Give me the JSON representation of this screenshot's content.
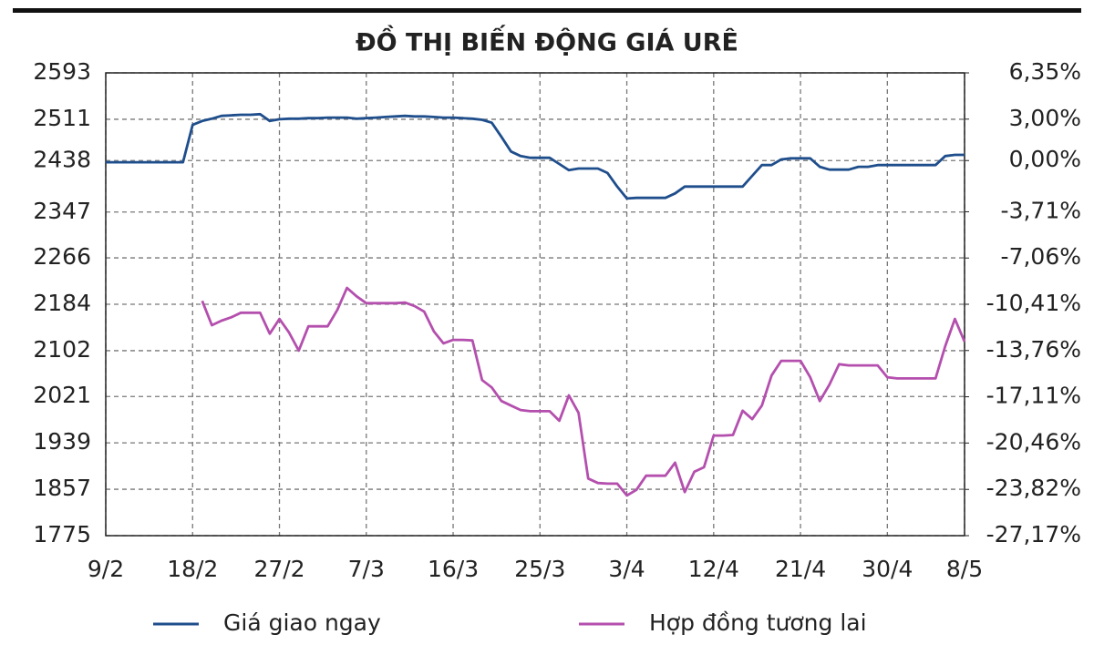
{
  "chart_data": {
    "type": "line",
    "title": "ĐỒ THỊ BIẾN ĐỘNG GIÁ URÊ",
    "categories": [
      "9/2",
      null,
      null,
      null,
      null,
      null,
      null,
      null,
      null,
      "18/2",
      null,
      null,
      null,
      null,
      null,
      null,
      null,
      null,
      "27/2",
      null,
      null,
      null,
      null,
      null,
      null,
      null,
      null,
      "7/3",
      null,
      null,
      null,
      null,
      null,
      null,
      null,
      null,
      "16/3",
      null,
      null,
      null,
      null,
      null,
      null,
      null,
      null,
      "25/3",
      null,
      null,
      null,
      null,
      null,
      null,
      null,
      null,
      "3/4",
      null,
      null,
      null,
      null,
      null,
      null,
      null,
      null,
      "12/4",
      null,
      null,
      null,
      null,
      null,
      null,
      null,
      null,
      "21/4",
      null,
      null,
      null,
      null,
      null,
      null,
      null,
      null,
      "30/4",
      null,
      null,
      null,
      null,
      null,
      null,
      null,
      "8/5"
    ],
    "series": [
      {
        "name": "Giá giao ngay",
        "color": "#1f4e8c",
        "values": [
          2435,
          2435,
          2435,
          2435,
          2435,
          2435,
          2435,
          2435,
          2435,
          2501,
          2508,
          2512,
          2517,
          2518,
          2519,
          2519,
          2520,
          2508,
          2511,
          2512,
          2512,
          2513,
          2513,
          2514,
          2514,
          2514,
          2512,
          2513,
          2514,
          2515,
          2516,
          2517,
          2516,
          2516,
          2515,
          2514,
          2514,
          2513,
          2512,
          2510,
          2505,
          2480,
          2454,
          2446,
          2443,
          2443,
          2443,
          2432,
          2421,
          2424,
          2424,
          2424,
          2416,
          2392,
          2371,
          2372,
          2372,
          2372,
          2372,
          2380,
          2392,
          2392,
          2392,
          2392,
          2392,
          2392,
          2392,
          2411,
          2430,
          2430,
          2440,
          2442,
          2442,
          2442,
          2427,
          2422,
          2422,
          2422,
          2427,
          2427,
          2430,
          2430,
          2430,
          2430,
          2430,
          2430,
          2430,
          2446,
          2448,
          2448
        ]
      },
      {
        "name": "Hợp đồng tương lai",
        "color": "#b44fae",
        "values": [
          null,
          null,
          null,
          null,
          null,
          null,
          null,
          null,
          null,
          null,
          2190,
          2147,
          2155,
          2161,
          2169,
          2169,
          2169,
          2132,
          2158,
          2134,
          2102,
          2145,
          2145,
          2145,
          2174,
          2213,
          2198,
          2186,
          2186,
          2186,
          2186,
          2187,
          2181,
          2171,
          2136,
          2115,
          2121,
          2121,
          2120,
          2050,
          2037,
          2013,
          2005,
          1997,
          1995,
          1995,
          1995,
          1978,
          2023,
          1992,
          1876,
          1868,
          1867,
          1867,
          1846,
          1856,
          1881,
          1881,
          1881,
          1904,
          1852,
          1888,
          1896,
          1952,
          1952,
          1953,
          1996,
          1981,
          2005,
          2058,
          2084,
          2084,
          2084,
          2055,
          2013,
          2042,
          2078,
          2076,
          2076,
          2076,
          2076,
          2055,
          2053,
          2053,
          2053,
          2053,
          2053,
          2110,
          2158,
          2118
        ]
      }
    ],
    "ylim": [
      1775,
      2593
    ],
    "yticks": [
      1775,
      1857,
      1939,
      2021,
      2102,
      2184,
      2266,
      2347,
      2438,
      2511,
      2593
    ],
    "y2lim": [
      -27.17,
      6.35
    ],
    "y2ticks": [
      {
        "value": -27.17,
        "label": "-27,17%"
      },
      {
        "value": -23.82,
        "label": "-23,82%"
      },
      {
        "value": -20.46,
        "label": "-20,46%"
      },
      {
        "value": -17.11,
        "label": "-17,11%"
      },
      {
        "value": -13.76,
        "label": "-13,76%"
      },
      {
        "value": -10.41,
        "label": "-10,41%"
      },
      {
        "value": -7.06,
        "label": "-7,06%"
      },
      {
        "value": -3.71,
        "label": "-3,71%"
      },
      {
        "value": 0,
        "label": "0,00%"
      },
      {
        "value": 3,
        "label": "3,00%"
      },
      {
        "value": 6.35,
        "label": "6,35%"
      }
    ],
    "grid": true,
    "legend": "bottom"
  }
}
